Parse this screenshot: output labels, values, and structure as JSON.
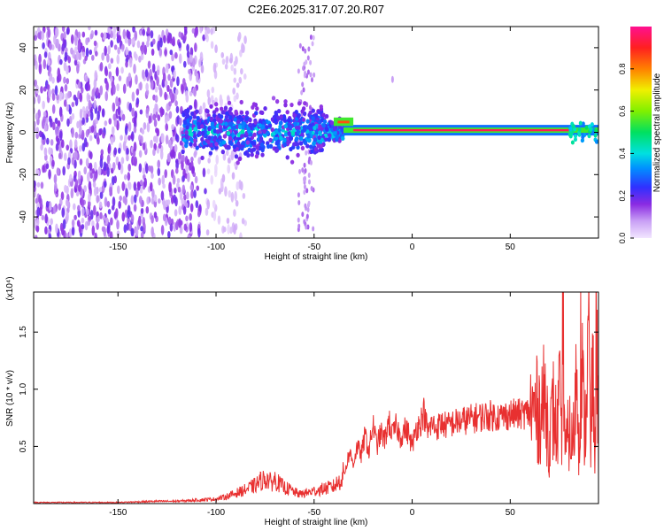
{
  "title": "C2E6.2025.317.07.20.R07",
  "colors": {
    "snr_line": "#e83030",
    "spectrum_core": "#e84060",
    "frame": "#000000"
  },
  "colorbar": {
    "label": "Normalized spectral amplitude",
    "ticks": [
      "0.0",
      "0.2",
      "0.4",
      "0.6",
      "0.8"
    ],
    "tick_values": [
      0.0,
      0.2,
      0.4,
      0.6,
      0.8
    ],
    "range": [
      0,
      1
    ]
  },
  "chart_data": [
    {
      "type": "heatmap",
      "title": "C2E6.2025.317.07.20.R07",
      "xlabel": "Height of straight line (km)",
      "ylabel": "Frequency (Hz)",
      "xlim": [
        -193,
        95
      ],
      "ylim": [
        -50,
        50
      ],
      "xticks": [
        -150,
        -100,
        -50,
        0,
        50
      ],
      "xtick_labels": [
        "-150",
        "-100",
        "-50",
        "0",
        "50"
      ],
      "yticks": [
        -40,
        -20,
        0,
        20,
        40
      ],
      "ytick_labels": [
        "-40",
        "-20",
        "0",
        "20",
        "40"
      ],
      "colorscale": "normalized spectral amplitude 0-1 (purple -> blue -> cyan -> green -> yellow -> red -> magenta)",
      "features": {
        "broadband_noise_x": [
          -193,
          -100
        ],
        "dense_band_x": [
          -117,
          -35
        ],
        "dense_band_freq_halfwidth_hz": 10,
        "narrow_line_x": [
          -35,
          95
        ],
        "narrow_line_freq_hz": 1,
        "narrow_line_amplitude": 0.95
      }
    },
    {
      "type": "line",
      "xlabel": "Height of straight line (km)",
      "ylabel": "SNR (10 * v/v)",
      "y_multiplier": "(x10⁴)",
      "xlim": [
        -193,
        95
      ],
      "ylim": [
        0,
        1.85
      ],
      "xticks": [
        -150,
        -100,
        -50,
        0,
        50
      ],
      "xtick_labels": [
        "-150",
        "-100",
        "-50",
        "0",
        "50"
      ],
      "yticks": [
        0.5,
        1.0,
        1.5
      ],
      "ytick_labels": [
        "0.5",
        "1.0",
        "1.5"
      ],
      "series": [
        {
          "x": [
            -193,
            -170,
            -150,
            -130,
            -120,
            -110,
            -100,
            -95,
            -90,
            -85,
            -80,
            -77,
            -74,
            -72,
            -70,
            -67,
            -65,
            -62,
            -60,
            -57,
            -55,
            -52,
            -50,
            -47,
            -45,
            -42,
            -40,
            -38,
            -36,
            -34,
            -32,
            -30,
            -28,
            -26,
            -24,
            -22,
            -20,
            -18,
            -16,
            -14,
            -12,
            -10,
            -8,
            -6,
            -4,
            -2,
            0,
            2,
            4,
            6,
            8,
            10,
            12,
            15,
            18,
            20,
            25,
            30,
            35,
            40,
            45,
            50,
            55,
            60,
            65,
            68,
            70,
            72,
            74,
            75,
            76,
            77,
            78,
            80,
            82,
            84,
            85,
            86,
            88,
            90,
            91,
            92,
            93,
            94,
            95
          ],
          "y": [
            0.01,
            0.01,
            0.01,
            0.02,
            0.02,
            0.03,
            0.04,
            0.06,
            0.09,
            0.12,
            0.16,
            0.2,
            0.22,
            0.18,
            0.21,
            0.16,
            0.14,
            0.12,
            0.1,
            0.08,
            0.09,
            0.1,
            0.11,
            0.12,
            0.13,
            0.14,
            0.15,
            0.18,
            0.22,
            0.3,
            0.45,
            0.35,
            0.5,
            0.42,
            0.6,
            0.45,
            0.7,
            0.5,
            0.62,
            0.55,
            0.72,
            0.6,
            0.68,
            0.58,
            0.65,
            0.62,
            0.5,
            0.66,
            0.7,
            0.8,
            0.62,
            0.7,
            0.66,
            0.7,
            0.68,
            0.7,
            0.72,
            0.74,
            0.76,
            0.77,
            0.76,
            0.78,
            0.78,
            0.8,
            0.82,
            0.9,
            0.55,
            0.82,
            0.6,
            1.0,
            0.45,
            1.65,
            0.4,
            0.65,
            0.5,
            1.2,
            0.55,
            1.35,
            0.6,
            1.5,
            0.4,
            1.3,
            0.35,
            1.7,
            0.5
          ],
          "style": "noisy red line, sample-level fluctuation between listed points"
        }
      ]
    }
  ]
}
